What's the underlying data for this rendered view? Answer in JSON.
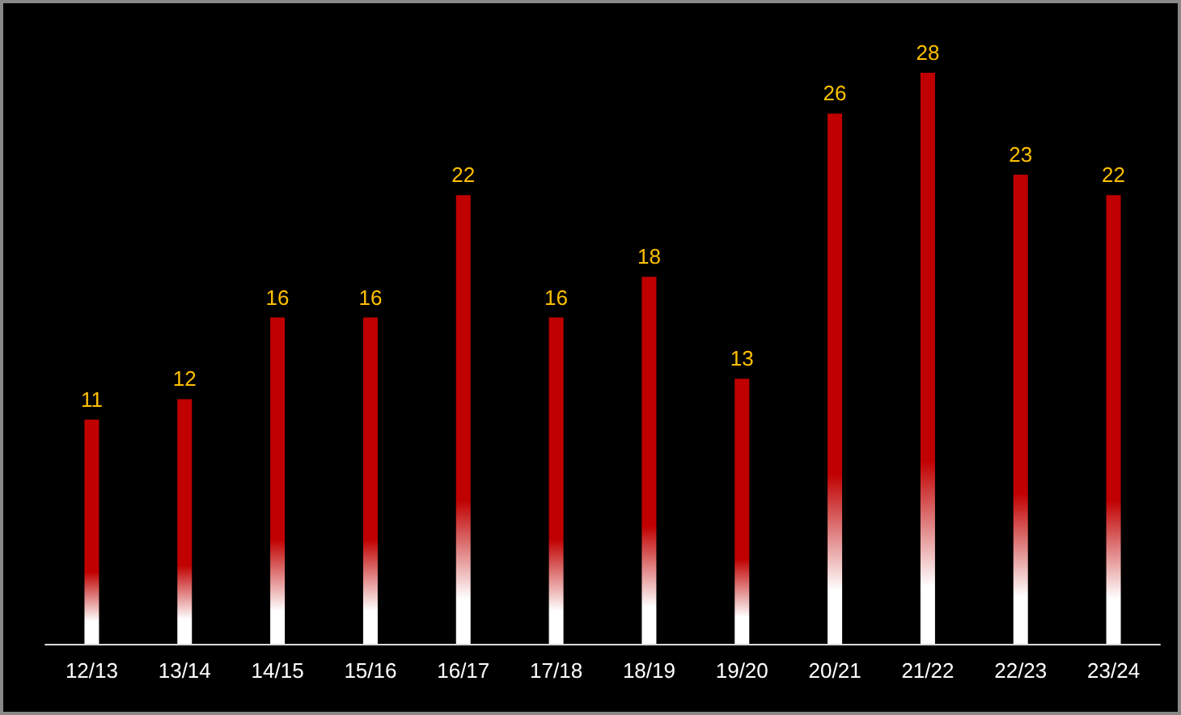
{
  "chart_data": {
    "type": "bar",
    "categories": [
      "12/13",
      "13/14",
      "14/15",
      "15/16",
      "16/17",
      "17/18",
      "18/19",
      "19/20",
      "20/21",
      "21/22",
      "22/23",
      "23/24"
    ],
    "values": [
      11,
      12,
      16,
      16,
      22,
      16,
      18,
      13,
      26,
      28,
      23,
      22
    ],
    "color": "#c00000",
    "data_labels": true
  }
}
